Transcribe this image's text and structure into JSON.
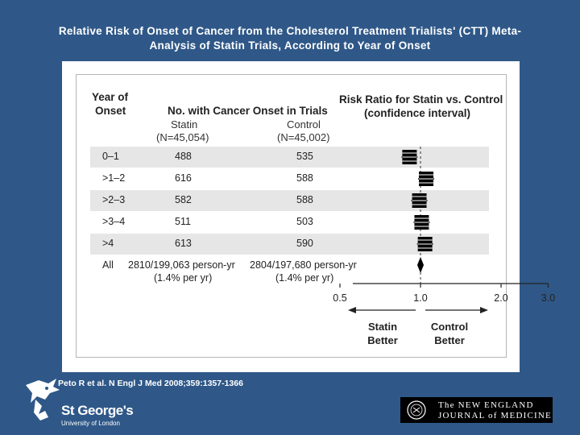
{
  "title": "Relative Risk of Onset of Cancer from the Cholesterol Treatment Trialists' (CTT) Meta-Analysis of Statin Trials, According to Year of Onset",
  "title_line1": "Relative Risk of Onset of Cancer from the Cholesterol Treatment Trialists' (CTT) Meta-",
  "title_line2": "Analysis of Statin Trials, According to Year of Onset",
  "table": {
    "year_header_1": "Year of",
    "year_header_2": "Onset",
    "count_header": "No. with Cancer Onset in Trials",
    "statin_label": "Statin",
    "statin_n": "(N=45,054)",
    "control_label": "Control",
    "control_n": "(N=45,002)",
    "rr_header_1": "Risk Ratio for Statin vs. Control",
    "rr_header_2": "(confidence interval)",
    "rows": [
      {
        "year": "0–1",
        "statin": "488",
        "control": "535"
      },
      {
        "year": ">1–2",
        "statin": "616",
        "control": "588"
      },
      {
        "year": ">2–3",
        "statin": "582",
        "control": "588"
      },
      {
        "year": ">3–4",
        "statin": "511",
        "control": "503"
      },
      {
        "year": ">4",
        "statin": "613",
        "control": "590"
      }
    ],
    "all_row": {
      "year": "All",
      "statin_1": "2810/199,063 person-yr",
      "statin_2": "(1.4% per yr)",
      "control_1": "2804/197,680 person-yr",
      "control_2": "(1.4% per yr)"
    }
  },
  "chart_data": {
    "type": "forest",
    "xscale": "log",
    "xlim": [
      0.5,
      3.0
    ],
    "ticks": [
      "0.5",
      "1.0",
      "2.0",
      "3.0"
    ],
    "tick_values": [
      0.5,
      1.0,
      2.0,
      3.0
    ],
    "reference_line": 1.0,
    "left_label_1": "Statin",
    "left_label_2": "Better",
    "right_label_1": "Control",
    "right_label_2": "Better",
    "estimates": [
      {
        "year": "0–1",
        "rr": 0.91
      },
      {
        "year": ">1–2",
        "rr": 1.05
      },
      {
        "year": ">2–3",
        "rr": 0.99
      },
      {
        "year": ">3–4",
        "rr": 1.01
      },
      {
        "year": ">4",
        "rr": 1.04
      }
    ],
    "overall": {
      "year": "All",
      "rr": 1.0
    }
  },
  "footer": {
    "citation": "Peto R et al. N Engl J Med 2008;359:1357-1366",
    "institution_name": "St George's",
    "institution_sub": "University of London",
    "journal_line1": "The NEW ENGLAND",
    "journal_line2": "JOURNAL of MEDICINE"
  }
}
